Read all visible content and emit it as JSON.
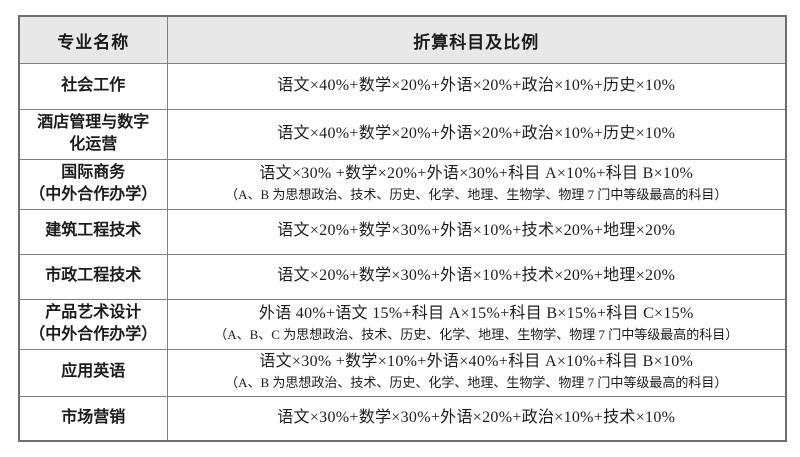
{
  "style": {
    "header_bg": "#e8e8e8",
    "border_color": "#7f7f7f",
    "outer_border_color": "#6e6e6e",
    "text_color": "#1c1c1c",
    "page_bg": "#ffffff"
  },
  "table": {
    "header": {
      "col_major": "专业名称",
      "col_formula": "折算科目及比例"
    },
    "rows": [
      {
        "name": "社会工作",
        "formula": "语文×40%+数学×20%+外语×20%+政治×10%+历史×10%",
        "note": ""
      },
      {
        "name": "酒店管理与数字\n化运营",
        "formula": "语文×40%+数学×20%+外语×20%+政治×10%+历史×10%",
        "note": ""
      },
      {
        "name": "国际商务\n（中外合作办学）",
        "formula": "语文×30% +数学×20%+外语×30%+科目 A×10%+科目 B×10%",
        "note": "（A、B 为思想政治、技术、历史、化学、地理、生物学、物理 7 门中等级最高的科目）"
      },
      {
        "name": "建筑工程技术",
        "formula": "语文×20%+数学×30%+外语×10%+技术×20%+地理×20%",
        "note": ""
      },
      {
        "name": "市政工程技术",
        "formula": "语文×20%+数学×30%+外语×10%+技术×20%+地理×20%",
        "note": ""
      },
      {
        "name": "产品艺术设计\n（中外合作办学）",
        "formula": "外语 40%+语文 15%+科目 A×15%+科目 B×15%+科目 C×15%",
        "note": "（A、B、C 为思想政治、技术、历史、化学、地理、生物学、物理 7 门中等级最高的科目）"
      },
      {
        "name": "应用英语",
        "formula": "语文×30% +数学×10%+外语×40%+科目 A×10%+科目 B×10%",
        "note": "（A、B 为思想政治、技术、历史、化学、地理、生物学、物理 7 门中等级最高的科目）"
      },
      {
        "name": "市场营销",
        "formula": "语文×30%+数学×30%+外语×20%+政治×10%+技术×10%",
        "note": ""
      }
    ]
  }
}
